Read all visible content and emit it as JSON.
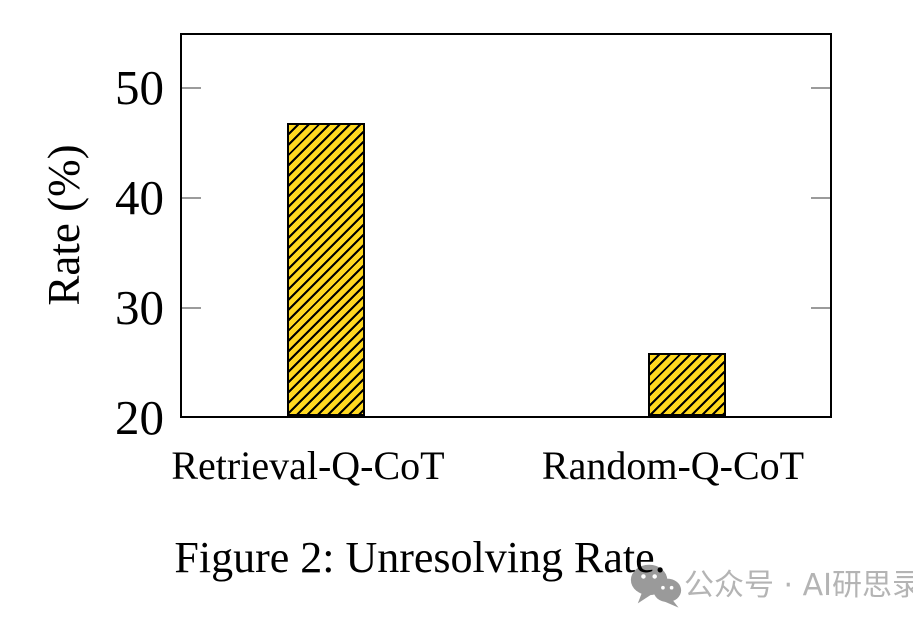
{
  "chart_data": {
    "type": "bar",
    "categories": [
      "Retrieval-Q-CoT",
      "Random-Q-CoT"
    ],
    "values": [
      46.9,
      25.8
    ],
    "title": "",
    "xlabel": "",
    "ylabel": "Rate (%)",
    "yticks": [
      20,
      30,
      40,
      50
    ],
    "ylim": [
      20,
      55
    ],
    "grid": false,
    "legend": "none",
    "bar_fill_color": "#FFD820",
    "bar_hatch": "forward-diagonal-black",
    "bar_border_color": "#000000",
    "tick_color": "#9b9b9b"
  },
  "caption": "Figure 2: Unresolving Rate.",
  "watermark": {
    "icon": "wechat-icon",
    "text": "公众号 · AI研思录",
    "color": "#b4b4b4"
  }
}
